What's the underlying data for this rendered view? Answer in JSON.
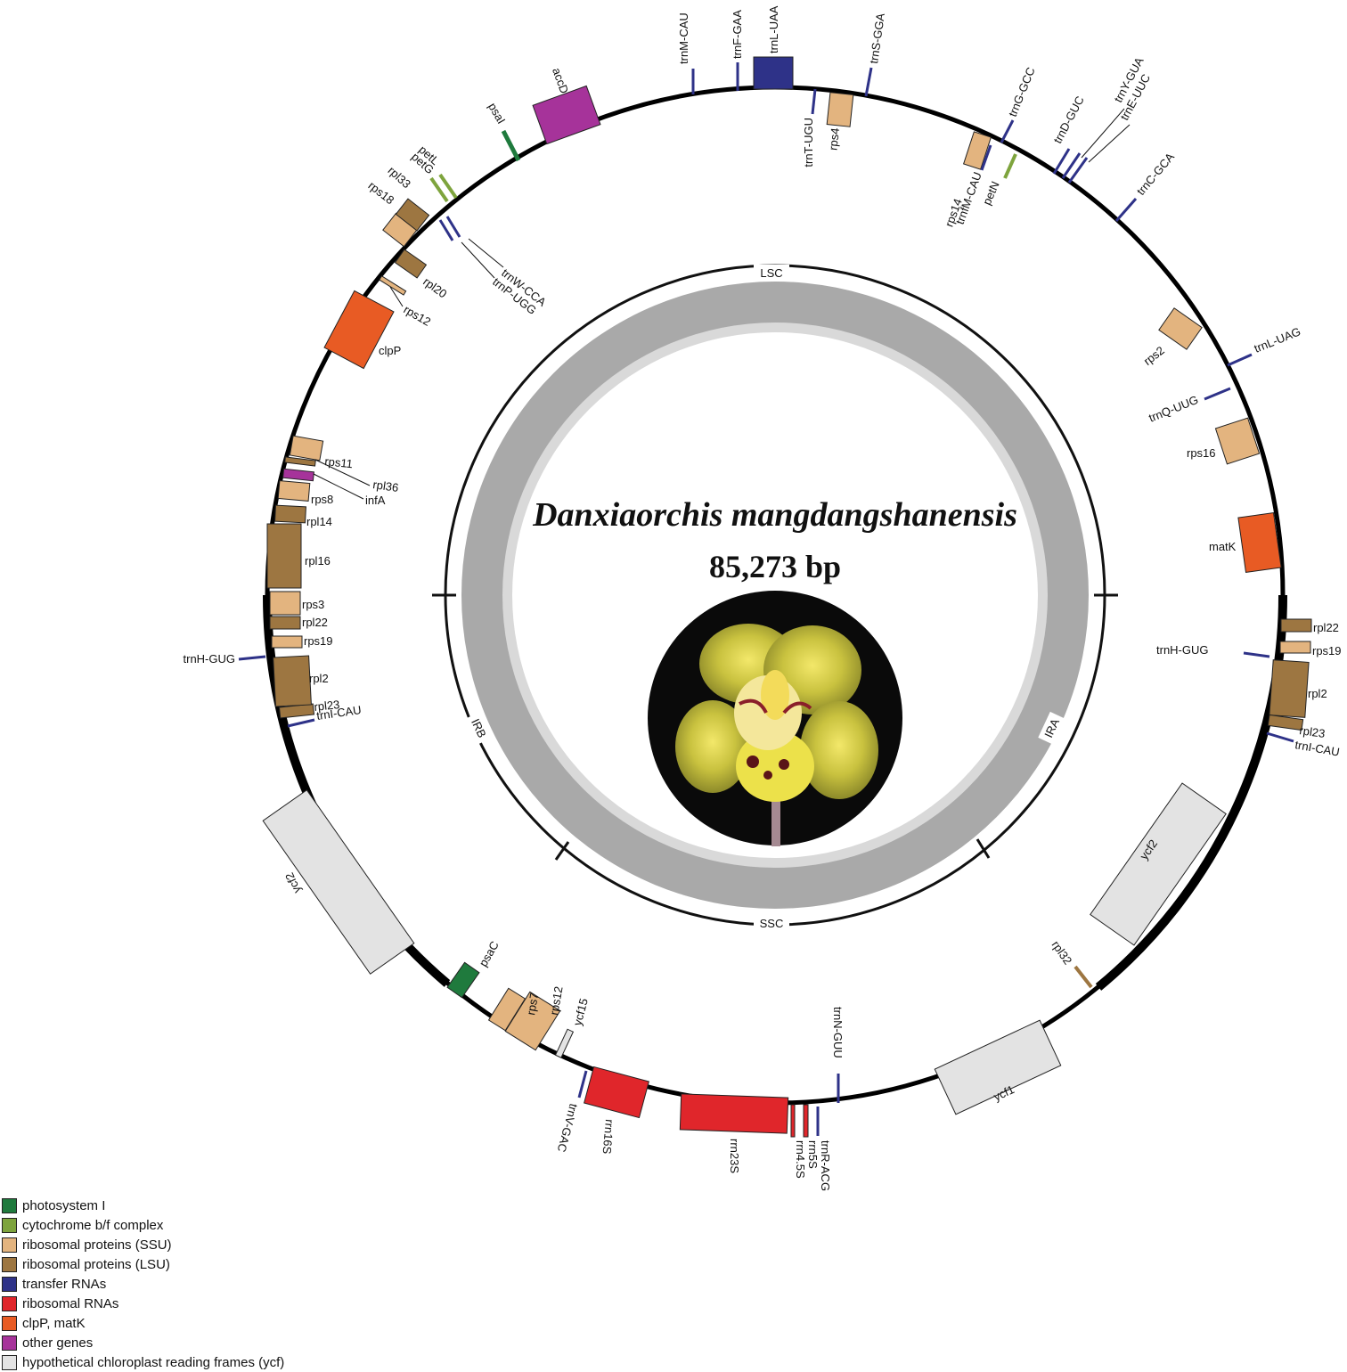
{
  "title": "Danxiaorchis mangdangshanensis",
  "length": "85,273 bp",
  "regions": [
    "LSC",
    "IRA",
    "SSC",
    "IRB"
  ],
  "colors": {
    "photosystem_I": "#1f7a3d",
    "cytochrome": "#7ea43d",
    "ssu": "#e3b47f",
    "lsu": "#9d7641",
    "trna": "#2e3288",
    "rrna": "#e0262b",
    "clp": "#e85b24",
    "other": "#a6339a",
    "ycf": "#e3e3e3"
  },
  "legend": [
    {
      "label": "photosystem I",
      "color": "#1f7a3d",
      "icon": "square-swatch"
    },
    {
      "label": "cytochrome b/f complex",
      "color": "#7ea43d",
      "icon": "square-swatch"
    },
    {
      "label": "ribosomal proteins (SSU)",
      "color": "#e3b47f",
      "icon": "square-swatch"
    },
    {
      "label": "ribosomal proteins (LSU)",
      "color": "#9d7641",
      "icon": "square-swatch"
    },
    {
      "label": "transfer RNAs",
      "color": "#2e3288",
      "icon": "square-swatch"
    },
    {
      "label": "ribosomal RNAs",
      "color": "#e0262b",
      "icon": "square-swatch"
    },
    {
      "label": "clpP, matK",
      "color": "#e85b24",
      "icon": "square-swatch"
    },
    {
      "label": "other genes",
      "color": "#a6339a",
      "icon": "square-swatch"
    },
    {
      "label": "hypothetical chloroplast reading frames (ycf)",
      "color": "#e3e3e3",
      "icon": "square-swatch"
    }
  ],
  "genes": [
    {
      "name": "trnM-CAU",
      "cat": "trna"
    },
    {
      "name": "trnF-GAA",
      "cat": "trna"
    },
    {
      "name": "trnL-UAA",
      "cat": "trna"
    },
    {
      "name": "trnS-GGA",
      "cat": "trna"
    },
    {
      "name": "trnT-UGU",
      "cat": "trna"
    },
    {
      "name": "rps4",
      "cat": "ssu"
    },
    {
      "name": "trnG-GCC",
      "cat": "trna"
    },
    {
      "name": "rps14",
      "cat": "ssu"
    },
    {
      "name": "trnfM-CAU",
      "cat": "trna"
    },
    {
      "name": "petN",
      "cat": "cytochrome"
    },
    {
      "name": "trnD-GUC",
      "cat": "trna"
    },
    {
      "name": "trnY-GUA",
      "cat": "trna"
    },
    {
      "name": "trnE-UUC",
      "cat": "trna"
    },
    {
      "name": "trnC-GCA",
      "cat": "trna"
    },
    {
      "name": "rps2",
      "cat": "ssu"
    },
    {
      "name": "trnL-UAG",
      "cat": "trna"
    },
    {
      "name": "trnQ-UUG",
      "cat": "trna"
    },
    {
      "name": "rps16",
      "cat": "ssu"
    },
    {
      "name": "matK",
      "cat": "clp"
    },
    {
      "name": "rpl22",
      "cat": "lsu"
    },
    {
      "name": "rps19",
      "cat": "ssu"
    },
    {
      "name": "trnH-GUG",
      "cat": "trna"
    },
    {
      "name": "rpl2",
      "cat": "lsu"
    },
    {
      "name": "rpl23",
      "cat": "lsu"
    },
    {
      "name": "trnI-CAU",
      "cat": "trna"
    },
    {
      "name": "ycf2",
      "cat": "ycf"
    },
    {
      "name": "rpl32",
      "cat": "lsu"
    },
    {
      "name": "ycf1",
      "cat": "ycf"
    },
    {
      "name": "trnN-GUU",
      "cat": "trna"
    },
    {
      "name": "trnR-ACG",
      "cat": "trna"
    },
    {
      "name": "rrn5S",
      "cat": "rrna"
    },
    {
      "name": "rrn4.5S",
      "cat": "rrna"
    },
    {
      "name": "rrn23S",
      "cat": "rrna"
    },
    {
      "name": "rrn16S",
      "cat": "rrna"
    },
    {
      "name": "trnV-GAC",
      "cat": "trna"
    },
    {
      "name": "ycf15",
      "cat": "ycf"
    },
    {
      "name": "rps12",
      "cat": "ssu"
    },
    {
      "name": "rps7",
      "cat": "ssu"
    },
    {
      "name": "psaC",
      "cat": "photosystem_I"
    },
    {
      "name": "ycf2",
      "cat": "ycf"
    },
    {
      "name": "trnI-CAU",
      "cat": "trna"
    },
    {
      "name": "rpl23",
      "cat": "lsu"
    },
    {
      "name": "rpl2",
      "cat": "lsu"
    },
    {
      "name": "trnH-GUG",
      "cat": "trna"
    },
    {
      "name": "rps19",
      "cat": "ssu"
    },
    {
      "name": "rpl22",
      "cat": "lsu"
    },
    {
      "name": "rps3",
      "cat": "ssu"
    },
    {
      "name": "rpl16",
      "cat": "lsu"
    },
    {
      "name": "rpl14",
      "cat": "lsu"
    },
    {
      "name": "infA",
      "cat": "other"
    },
    {
      "name": "rps8",
      "cat": "ssu"
    },
    {
      "name": "rpl36",
      "cat": "lsu"
    },
    {
      "name": "rps11",
      "cat": "ssu"
    },
    {
      "name": "clpP",
      "cat": "clp"
    },
    {
      "name": "rps12",
      "cat": "ssu"
    },
    {
      "name": "rpl20",
      "cat": "lsu"
    },
    {
      "name": "trnP-UGG",
      "cat": "trna"
    },
    {
      "name": "trnW-CCA",
      "cat": "trna"
    },
    {
      "name": "rps18",
      "cat": "ssu"
    },
    {
      "name": "rpl33",
      "cat": "lsu"
    },
    {
      "name": "petG",
      "cat": "cytochrome"
    },
    {
      "name": "petL",
      "cat": "cytochrome"
    },
    {
      "name": "psaI",
      "cat": "photosystem_I"
    },
    {
      "name": "accD",
      "cat": "other"
    }
  ]
}
